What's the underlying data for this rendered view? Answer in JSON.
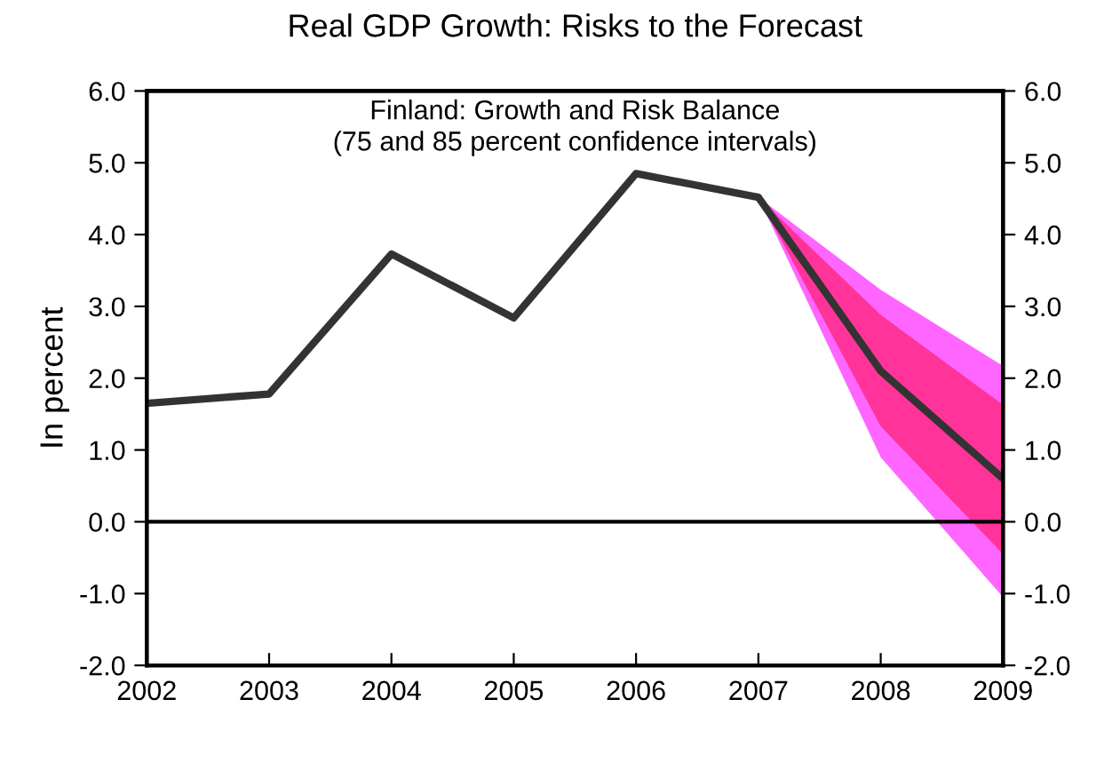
{
  "chart_data": {
    "type": "line",
    "title": "Real GDP Growth: Risks to the Forecast",
    "ylabel": "In percent",
    "annotations": [
      "Finland: Growth and Risk Balance\n(75 and 85 percent confidence intervals)"
    ],
    "x": [
      2002,
      2003,
      2004,
      2005,
      2006,
      2007,
      2008,
      2009
    ],
    "series": [
      {
        "type": "area",
        "color": "#ff66ff",
        "x": [
          2007,
          2008,
          2009
        ],
        "values": [
          null,
          null,
          null
        ],
        "lower": [
          4.52,
          0.9,
          -1.05
        ],
        "upper": [
          4.52,
          3.23,
          2.17
        ]
      },
      {
        "type": "area",
        "color": "#ff3399",
        "x": [
          2007,
          2008,
          2009
        ],
        "values": [
          null,
          null,
          null
        ],
        "lower": [
          4.52,
          1.33,
          -0.45
        ],
        "upper": [
          4.52,
          2.88,
          1.63
        ]
      },
      {
        "color": "#333333",
        "values": [
          1.65,
          1.78,
          3.73,
          2.84,
          4.85,
          4.52,
          2.1,
          0.6
        ]
      }
    ],
    "xlim": [
      2002,
      2009
    ],
    "xticks": [
      2002,
      2003,
      2004,
      2005,
      2006,
      2007,
      2008,
      2009
    ],
    "ylim": [
      -2,
      6
    ],
    "yticks": [
      {
        "value": -2,
        "label": "-2.0"
      },
      {
        "value": -1,
        "label": "-1.0"
      },
      {
        "value": 0,
        "label": "0.0"
      },
      {
        "value": 1,
        "label": "1.0"
      },
      {
        "value": 2,
        "label": "2.0"
      },
      {
        "value": 3,
        "label": "3.0"
      },
      {
        "value": 4,
        "label": "4.0"
      },
      {
        "value": 5,
        "label": "5.0"
      },
      {
        "value": 6,
        "label": "6.0"
      }
    ],
    "y2lim": [
      -2,
      6
    ],
    "y2ticks": [
      {
        "value": -2,
        "label": "-2.0"
      },
      {
        "value": -1,
        "label": "-1.0"
      },
      {
        "value": 0,
        "label": "0.0"
      },
      {
        "value": 1,
        "label": "1.0"
      },
      {
        "value": 2,
        "label": "2.0"
      },
      {
        "value": 3,
        "label": "3.0"
      },
      {
        "value": 4,
        "label": "4.0"
      },
      {
        "value": 5,
        "label": "5.0"
      },
      {
        "value": 6,
        "label": "6.0"
      }
    ],
    "ref_lines": [
      {
        "axis": "y",
        "value": 0,
        "color": "#000000"
      }
    ],
    "grid": false,
    "legend": false,
    "marker": "none",
    "line_style": "solid"
  }
}
